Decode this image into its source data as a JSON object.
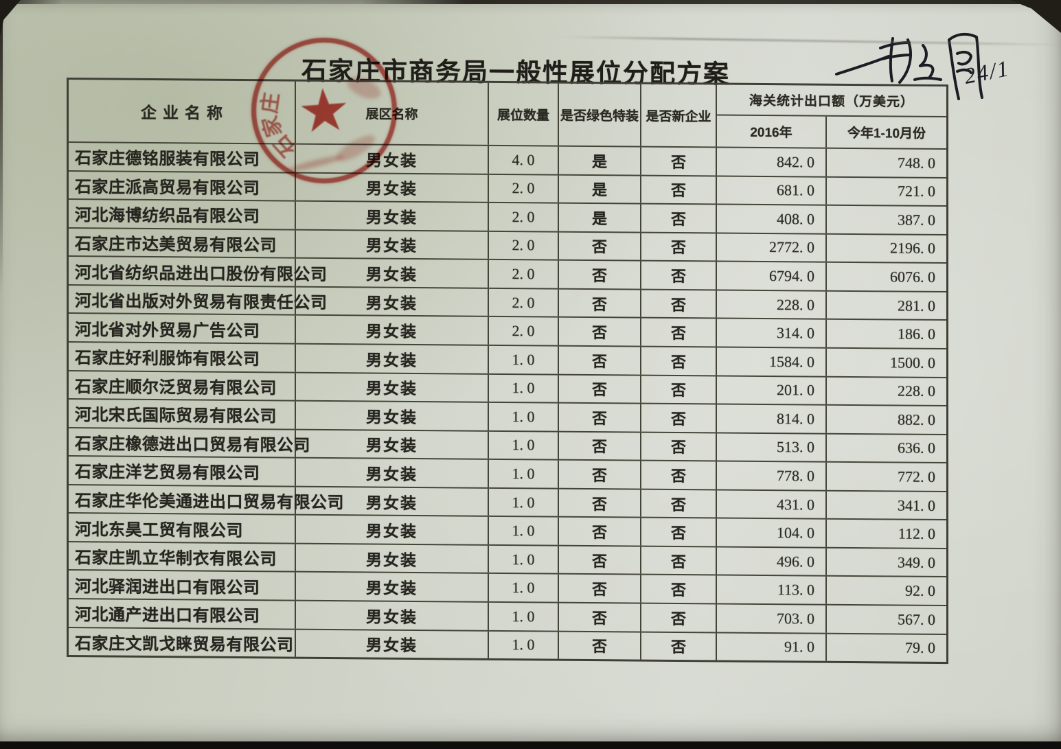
{
  "document": {
    "title": "石家庄市商务局一般性展位分配方案",
    "handwritten_note": "24/1"
  },
  "stamp": {
    "color": "#ba322a",
    "star": "★",
    "ring_chars": [
      "石",
      "家",
      "庄"
    ]
  },
  "table": {
    "headers": {
      "company": "企业名称",
      "zone": "展区名称",
      "booths": "展位数量",
      "green": "是否绿色特装",
      "new_enterprise": "是否新企业",
      "export_group": "海关统计出口额（万美元）",
      "export_2016": "2016年",
      "export_ytd": "今年1-10月份"
    },
    "rows": [
      [
        "石家庄德铭服装有限公司",
        "男女装",
        "4. 0",
        "是",
        "否",
        "842. 0",
        "748. 0"
      ],
      [
        "石家庄派高贸易有限公司",
        "男女装",
        "2. 0",
        "是",
        "否",
        "681. 0",
        "721. 0"
      ],
      [
        "河北海博纺织品有限公司",
        "男女装",
        "2. 0",
        "是",
        "否",
        "408. 0",
        "387. 0"
      ],
      [
        "石家庄市达美贸易有限公司",
        "男女装",
        "2. 0",
        "否",
        "否",
        "2772. 0",
        "2196. 0"
      ],
      [
        "河北省纺织品进出口股份有限公司",
        "男女装",
        "2. 0",
        "否",
        "否",
        "6794. 0",
        "6076. 0"
      ],
      [
        "河北省出版对外贸易有限责任公司",
        "男女装",
        "2. 0",
        "否",
        "否",
        "228. 0",
        "281. 0"
      ],
      [
        "河北省对外贸易广告公司",
        "男女装",
        "2. 0",
        "否",
        "否",
        "314. 0",
        "186. 0"
      ],
      [
        "石家庄好利服饰有限公司",
        "男女装",
        "1. 0",
        "否",
        "否",
        "1584. 0",
        "1500. 0"
      ],
      [
        "石家庄顺尔泛贸易有限公司",
        "男女装",
        "1. 0",
        "否",
        "否",
        "201. 0",
        "228. 0"
      ],
      [
        "河北宋氏国际贸易有限公司",
        "男女装",
        "1. 0",
        "否",
        "否",
        "814. 0",
        "882. 0"
      ],
      [
        "石家庄橡德进出口贸易有限公司",
        "男女装",
        "1. 0",
        "否",
        "否",
        "513. 0",
        "636. 0"
      ],
      [
        "石家庄洋艺贸易有限公司",
        "男女装",
        "1. 0",
        "否",
        "否",
        "778. 0",
        "772. 0"
      ],
      [
        "石家庄华伦美通进出口贸易有限公司",
        "男女装",
        "1. 0",
        "否",
        "否",
        "431. 0",
        "341. 0"
      ],
      [
        "河北东昊工贸有限公司",
        "男女装",
        "1. 0",
        "否",
        "否",
        "104. 0",
        "112. 0"
      ],
      [
        "石家庄凯立华制衣有限公司",
        "男女装",
        "1. 0",
        "否",
        "否",
        "496. 0",
        "349. 0"
      ],
      [
        "河北驿润进出口有限公司",
        "男女装",
        "1. 0",
        "否",
        "否",
        "113. 0",
        "92. 0"
      ],
      [
        "河北通产进出口有限公司",
        "男女装",
        "1. 0",
        "否",
        "否",
        "703. 0",
        "567. 0"
      ],
      [
        "石家庄文凯戈睐贸易有限公司",
        "男女装",
        "1. 0",
        "否",
        "否",
        "91. 0",
        "79. 0"
      ]
    ]
  }
}
